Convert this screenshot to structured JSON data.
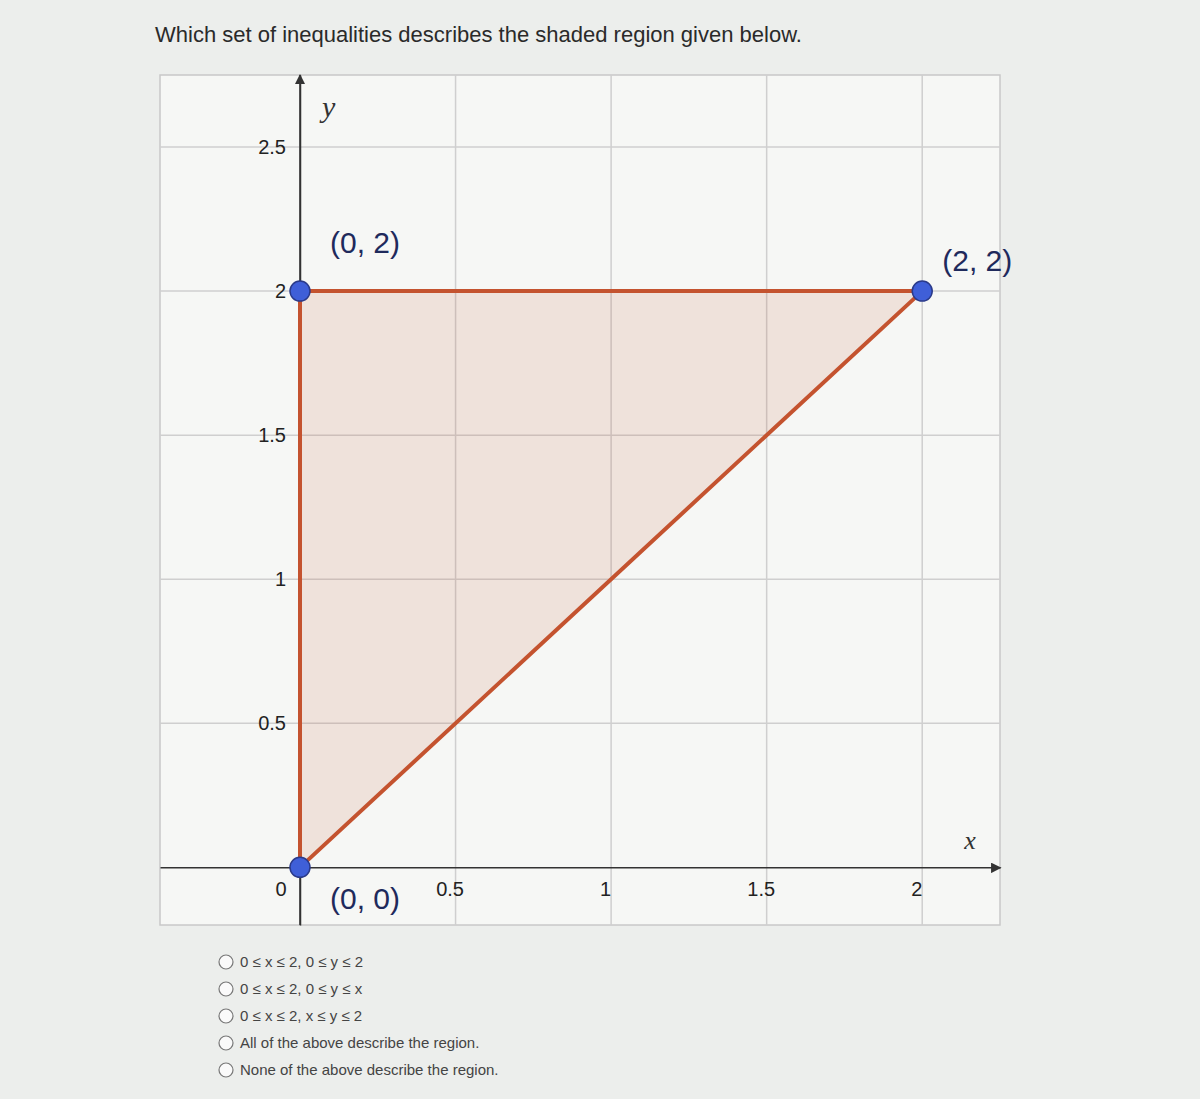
{
  "question": "Which set of inequalities describes the shaded region given below.",
  "chart_data": {
    "type": "polygon",
    "xlabel": "x",
    "ylabel": "y",
    "x": [
      0,
      2,
      0
    ],
    "y": [
      0,
      2,
      2
    ],
    "point_labels": [
      "(0, 0)",
      "(2, 2)",
      "(0, 2)"
    ],
    "color": "#c4532f",
    "marker": "circle",
    "xlim": [
      -0.45,
      2.25
    ],
    "ylim": [
      -0.2,
      2.75
    ],
    "xticks": [
      0,
      0.5,
      1,
      1.5,
      2
    ],
    "yticks": [
      0.5,
      1,
      1.5,
      2,
      2.5
    ],
    "grid": true
  },
  "options": [
    "0 ≤ x ≤ 2, 0 ≤ y ≤ 2",
    "0 ≤ x ≤ 2, 0 ≤ y ≤ x",
    "0 ≤ x ≤ 2, x ≤ y ≤ 2",
    "All of the above describe the region.",
    "None of the above describe the region."
  ]
}
